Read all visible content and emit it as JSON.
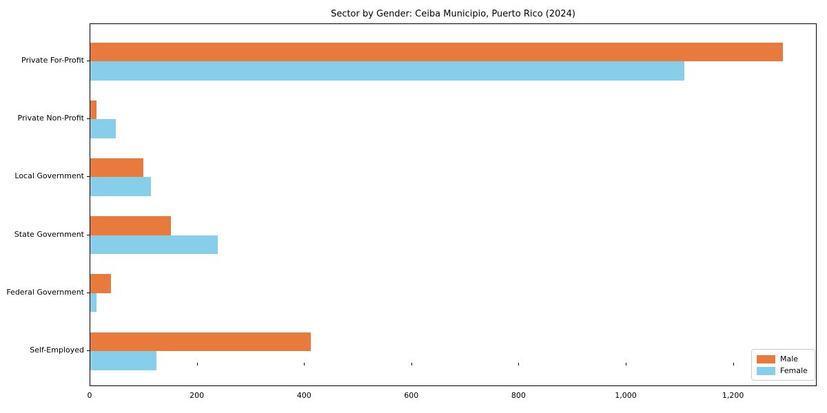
{
  "chart_data": {
    "type": "bar",
    "orientation": "horizontal",
    "title": "Sector by Gender: Ceiba Municipio, Puerto Rico (2024)",
    "categories": [
      "Private For-Profit",
      "Private Non-Profit",
      "Local Government",
      "State Government",
      "Federal Government",
      "Self-Employed"
    ],
    "series": [
      {
        "name": "Male",
        "color": "#E87A3D",
        "values": [
          1292,
          12,
          99,
          150,
          38,
          411
        ]
      },
      {
        "name": "Female",
        "color": "#87CEEB",
        "values": [
          1108,
          48,
          113,
          238,
          12,
          123
        ]
      }
    ],
    "xlim": [
      0,
      1356
    ],
    "xticks": [
      0,
      200,
      400,
      600,
      800,
      1000,
      1200
    ],
    "xtick_labels": [
      "0",
      "200",
      "400",
      "600",
      "800",
      "1,000",
      "1,200"
    ],
    "xlabel": "",
    "ylabel": "",
    "grid": false,
    "legend_position": "lower right",
    "background_color": "#ffffff",
    "axis_color": "#000000"
  }
}
